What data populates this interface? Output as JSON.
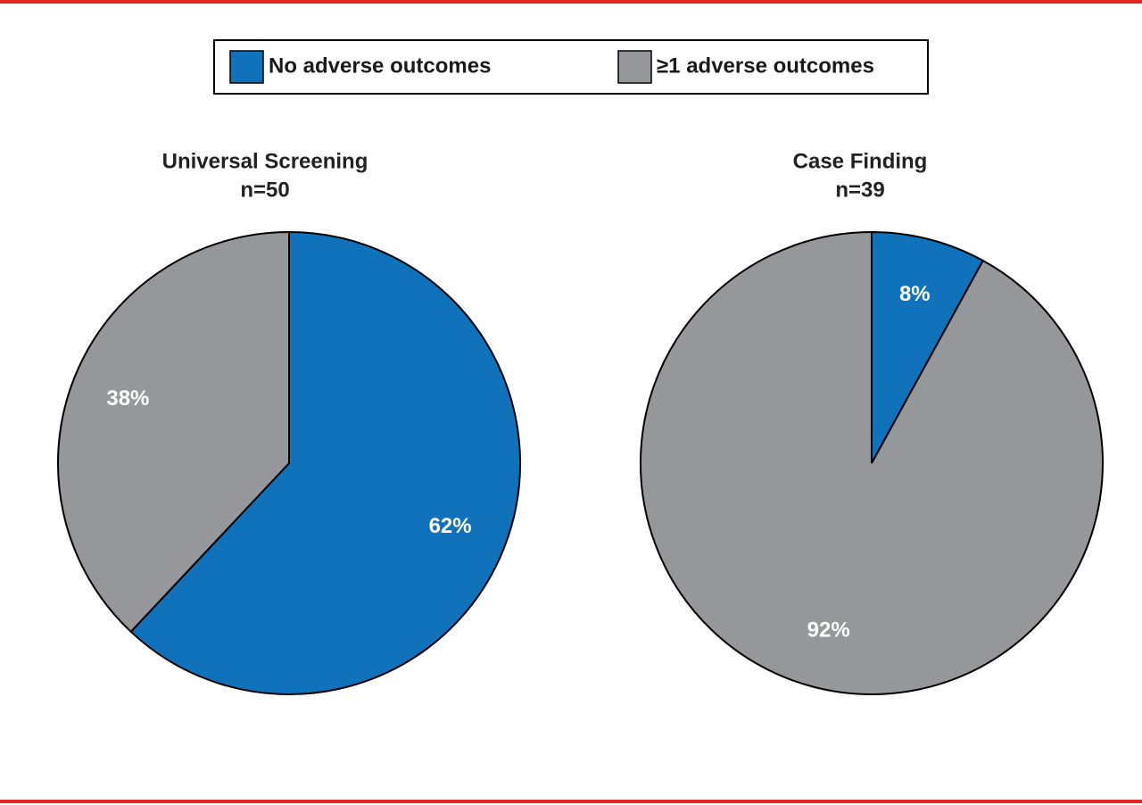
{
  "legend": {
    "labels": [
      "No adverse outcomes",
      "≥1 adverse outcomes"
    ],
    "colors": [
      "#1072bb",
      "#96979b"
    ]
  },
  "chart_data": [
    {
      "type": "pie",
      "title": "Universal Screening",
      "subtitle": "n=50",
      "values": [
        62,
        38
      ],
      "value_labels": [
        "62%",
        "38%"
      ]
    },
    {
      "type": "pie",
      "title": "Case Finding",
      "subtitle": "n=39",
      "values": [
        8,
        92
      ],
      "value_labels": [
        "8%",
        "92%"
      ]
    }
  ]
}
